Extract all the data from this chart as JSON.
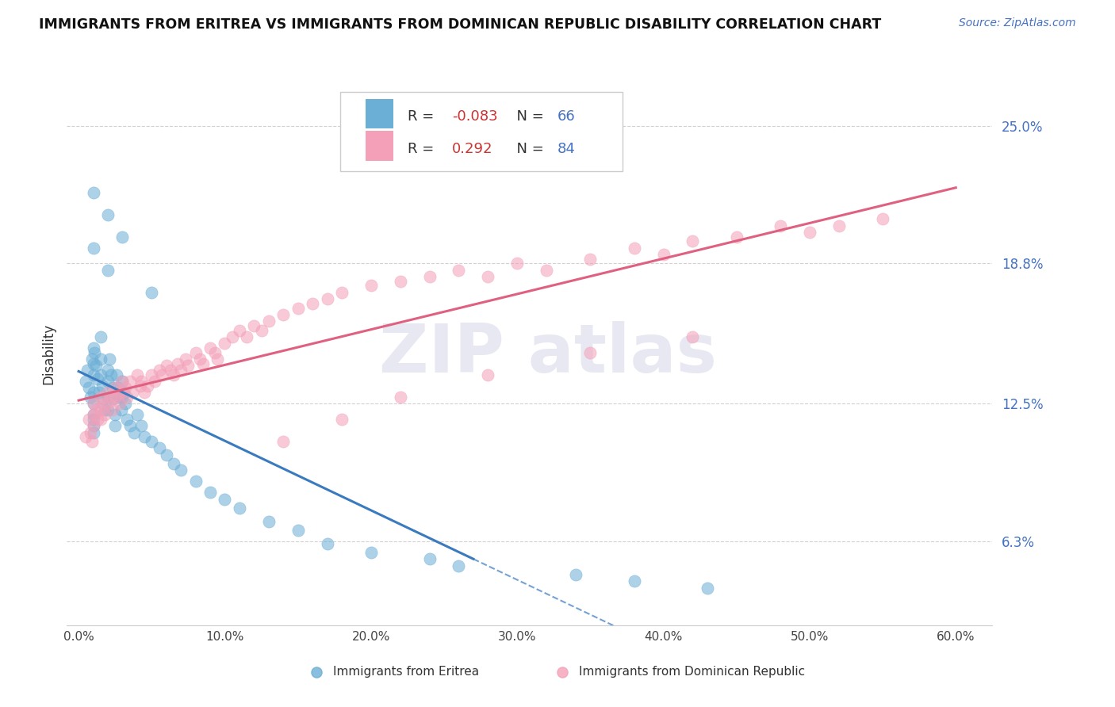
{
  "title": "IMMIGRANTS FROM ERITREA VS IMMIGRANTS FROM DOMINICAN REPUBLIC DISABILITY CORRELATION CHART",
  "source": "Source: ZipAtlas.com",
  "ylabel": "Disability",
  "ytick_values": [
    0.063,
    0.125,
    0.188,
    0.25
  ],
  "ytick_labels": [
    "6.3%",
    "12.5%",
    "18.8%",
    "25.0%"
  ],
  "xtick_vals": [
    0.0,
    0.1,
    0.2,
    0.3,
    0.4,
    0.5,
    0.6
  ],
  "xtick_labels": [
    "0.0%",
    "10.0%",
    "20.0%",
    "30.0%",
    "40.0%",
    "50.0%",
    "60.0%"
  ],
  "legend1_r": "-0.083",
  "legend1_n": "66",
  "legend2_r": "0.292",
  "legend2_n": "84",
  "legend1_label": "Immigrants from Eritrea",
  "legend2_label": "Immigrants from Dominican Republic",
  "color_eritrea": "#6baed6",
  "color_dominican": "#f4a0b8",
  "color_eritrea_line": "#3a7abf",
  "color_dominican_line": "#e06080",
  "text_blue": "#4472c4",
  "text_red": "#cc3333",
  "text_dark": "#222222",
  "grid_color": "#cccccc",
  "watermark_color": "#e8e8f2",
  "eritrea_x": [
    0.005,
    0.006,
    0.007,
    0.008,
    0.009,
    0.01,
    0.01,
    0.01,
    0.01,
    0.01,
    0.01,
    0.01,
    0.01,
    0.01,
    0.011,
    0.012,
    0.013,
    0.014,
    0.015,
    0.015,
    0.015,
    0.016,
    0.017,
    0.018,
    0.02,
    0.02,
    0.02,
    0.02,
    0.021,
    0.022,
    0.023,
    0.024,
    0.025,
    0.025,
    0.026,
    0.027,
    0.028,
    0.029,
    0.03,
    0.03,
    0.031,
    0.032,
    0.033,
    0.035,
    0.038,
    0.04,
    0.043,
    0.045,
    0.05,
    0.055,
    0.06,
    0.065,
    0.07,
    0.08,
    0.09,
    0.1,
    0.11,
    0.13,
    0.15,
    0.17,
    0.2,
    0.24,
    0.26,
    0.34,
    0.38,
    0.43
  ],
  "eritrea_y": [
    0.135,
    0.14,
    0.132,
    0.128,
    0.145,
    0.15,
    0.143,
    0.138,
    0.13,
    0.125,
    0.12,
    0.118,
    0.115,
    0.112,
    0.148,
    0.142,
    0.136,
    0.13,
    0.155,
    0.145,
    0.138,
    0.133,
    0.127,
    0.122,
    0.14,
    0.135,
    0.128,
    0.122,
    0.145,
    0.138,
    0.132,
    0.127,
    0.12,
    0.115,
    0.138,
    0.132,
    0.128,
    0.122,
    0.135,
    0.128,
    0.13,
    0.125,
    0.118,
    0.115,
    0.112,
    0.12,
    0.115,
    0.11,
    0.108,
    0.105,
    0.102,
    0.098,
    0.095,
    0.09,
    0.085,
    0.082,
    0.078,
    0.072,
    0.068,
    0.062,
    0.058,
    0.055,
    0.052,
    0.048,
    0.045,
    0.042
  ],
  "eritrea_outliers_x": [
    0.01,
    0.01,
    0.02,
    0.02,
    0.03,
    0.05
  ],
  "eritrea_outliers_y": [
    0.22,
    0.195,
    0.21,
    0.185,
    0.2,
    0.175
  ],
  "dominican_x": [
    0.005,
    0.007,
    0.008,
    0.009,
    0.01,
    0.01,
    0.01,
    0.012,
    0.013,
    0.015,
    0.015,
    0.015,
    0.017,
    0.018,
    0.02,
    0.02,
    0.022,
    0.023,
    0.025,
    0.025,
    0.027,
    0.028,
    0.03,
    0.03,
    0.032,
    0.033,
    0.035,
    0.037,
    0.04,
    0.042,
    0.043,
    0.045,
    0.047,
    0.05,
    0.052,
    0.055,
    0.057,
    0.06,
    0.063,
    0.065,
    0.068,
    0.07,
    0.073,
    0.075,
    0.08,
    0.083,
    0.085,
    0.09,
    0.093,
    0.095,
    0.1,
    0.105,
    0.11,
    0.115,
    0.12,
    0.125,
    0.13,
    0.14,
    0.15,
    0.16,
    0.17,
    0.18,
    0.2,
    0.22,
    0.24,
    0.26,
    0.28,
    0.3,
    0.32,
    0.35,
    0.38,
    0.4,
    0.42,
    0.45,
    0.48,
    0.5,
    0.52,
    0.55,
    0.42,
    0.35,
    0.28,
    0.22,
    0.18,
    0.14
  ],
  "dominican_y": [
    0.11,
    0.118,
    0.112,
    0.108,
    0.125,
    0.12,
    0.115,
    0.122,
    0.118,
    0.128,
    0.122,
    0.118,
    0.125,
    0.12,
    0.13,
    0.125,
    0.128,
    0.122,
    0.132,
    0.128,
    0.13,
    0.125,
    0.135,
    0.13,
    0.132,
    0.128,
    0.135,
    0.13,
    0.138,
    0.133,
    0.135,
    0.13,
    0.133,
    0.138,
    0.135,
    0.14,
    0.138,
    0.142,
    0.14,
    0.138,
    0.143,
    0.14,
    0.145,
    0.142,
    0.148,
    0.145,
    0.143,
    0.15,
    0.148,
    0.145,
    0.152,
    0.155,
    0.158,
    0.155,
    0.16,
    0.158,
    0.162,
    0.165,
    0.168,
    0.17,
    0.172,
    0.175,
    0.178,
    0.18,
    0.182,
    0.185,
    0.182,
    0.188,
    0.185,
    0.19,
    0.195,
    0.192,
    0.198,
    0.2,
    0.205,
    0.202,
    0.205,
    0.208,
    0.155,
    0.148,
    0.138,
    0.128,
    0.118,
    0.108
  ]
}
